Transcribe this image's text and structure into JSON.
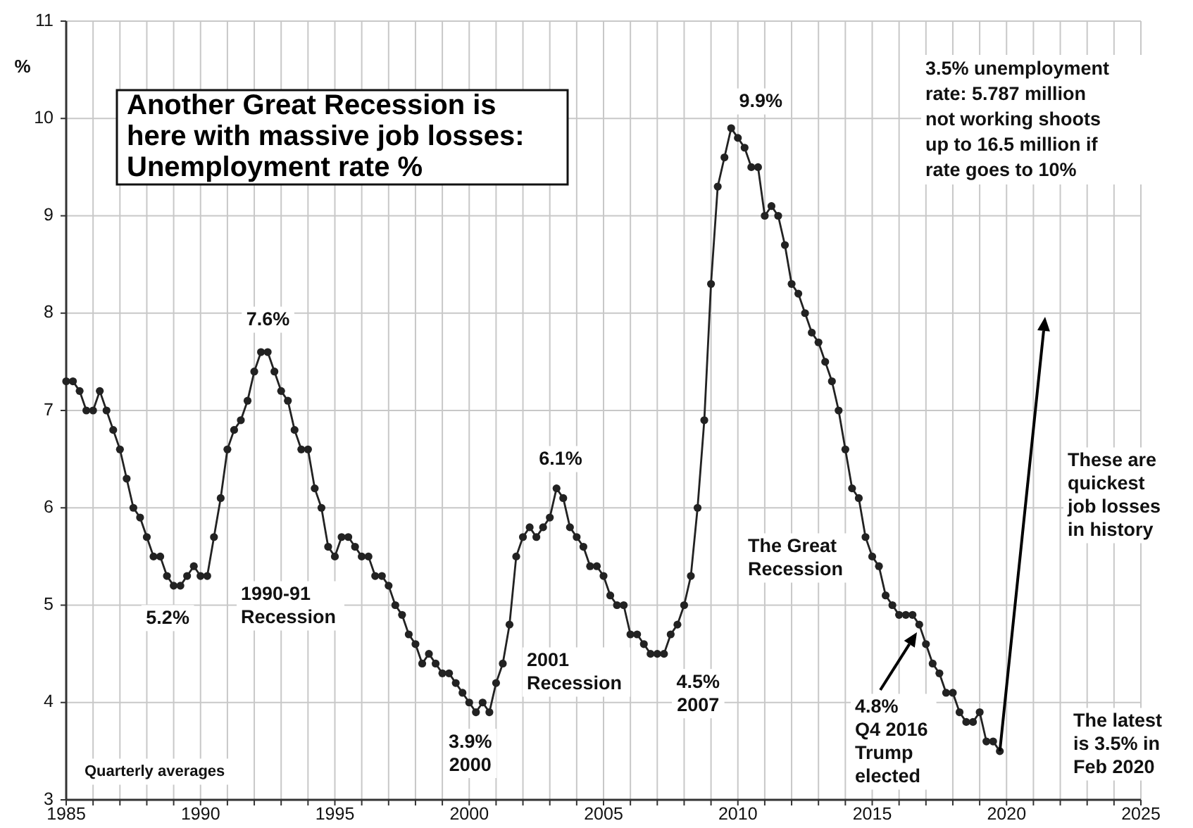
{
  "chart_data": {
    "type": "line",
    "title": "Another Great Recession is\nhere with massive job losses:\nUnemployment rate %",
    "ylabel": "%",
    "xlim": [
      1985,
      2025
    ],
    "ylim": [
      3,
      11
    ],
    "xticks": [
      1985,
      {
        "value": 1986,
        "label": null
      },
      {
        "value": 1987,
        "label": null
      },
      {
        "value": 1988,
        "label": null
      },
      {
        "value": 1989,
        "label": null
      },
      1990,
      {
        "value": 1991,
        "label": null
      },
      {
        "value": 1992,
        "label": null
      },
      {
        "value": 1993,
        "label": null
      },
      {
        "value": 1994,
        "label": null
      },
      1995,
      {
        "value": 1996,
        "label": null
      },
      {
        "value": 1997,
        "label": null
      },
      {
        "value": 1998,
        "label": null
      },
      {
        "value": 1999,
        "label": null
      },
      2000,
      {
        "value": 2001,
        "label": null
      },
      {
        "value": 2002,
        "label": null
      },
      {
        "value": 2003,
        "label": null
      },
      {
        "value": 2004,
        "label": null
      },
      2005,
      {
        "value": 2006,
        "label": null
      },
      {
        "value": 2007,
        "label": null
      },
      {
        "value": 2008,
        "label": null
      },
      {
        "value": 2009,
        "label": null
      },
      2010,
      {
        "value": 2011,
        "label": null
      },
      {
        "value": 2012,
        "label": null
      },
      {
        "value": 2013,
        "label": null
      },
      {
        "value": 2014,
        "label": null
      },
      2015,
      {
        "value": 2016,
        "label": null
      },
      {
        "value": 2017,
        "label": null
      },
      {
        "value": 2018,
        "label": null
      },
      {
        "value": 2019,
        "label": null
      },
      2020,
      {
        "value": 2021,
        "label": null
      },
      {
        "value": 2022,
        "label": null
      },
      {
        "value": 2023,
        "label": null
      },
      {
        "value": 2024,
        "label": null
      },
      2025
    ],
    "yticks": [
      3,
      4,
      5,
      6,
      7,
      8,
      9,
      10,
      11
    ],
    "grid": true,
    "marker": "circle",
    "line_style": "solid",
    "x": [
      1985,
      1985.25,
      1985.5,
      1985.75,
      1986,
      1986.25,
      1986.5,
      1986.75,
      1987,
      1987.25,
      1987.5,
      1987.75,
      1988,
      1988.25,
      1988.5,
      1988.75,
      1989,
      1989.25,
      1989.5,
      1989.75,
      1990,
      1990.25,
      1990.5,
      1990.75,
      1991,
      1991.25,
      1991.5,
      1991.75,
      1992,
      1992.25,
      1992.5,
      1992.75,
      1993,
      1993.25,
      1993.5,
      1993.75,
      1994,
      1994.25,
      1994.5,
      1994.75,
      1995,
      1995.25,
      1995.5,
      1995.75,
      1996,
      1996.25,
      1996.5,
      1996.75,
      1997,
      1997.25,
      1997.5,
      1997.75,
      1998,
      1998.25,
      1998.5,
      1998.75,
      1999,
      1999.25,
      1999.5,
      1999.75,
      2000,
      2000.25,
      2000.5,
      2000.75,
      2001,
      2001.25,
      2001.5,
      2001.75,
      2002,
      2002.25,
      2002.5,
      2002.75,
      2003,
      2003.25,
      2003.5,
      2003.75,
      2004,
      2004.25,
      2004.5,
      2004.75,
      2005,
      2005.25,
      2005.5,
      2005.75,
      2006,
      2006.25,
      2006.5,
      2006.75,
      2007,
      2007.25,
      2007.5,
      2007.75,
      2008,
      2008.25,
      2008.5,
      2008.75,
      2009,
      2009.25,
      2009.5,
      2009.75,
      2010,
      2010.25,
      2010.5,
      2010.75,
      2011,
      2011.25,
      2011.5,
      2011.75,
      2012,
      2012.25,
      2012.5,
      2012.75,
      2013,
      2013.25,
      2013.5,
      2013.75,
      2014,
      2014.25,
      2014.5,
      2014.75,
      2015,
      2015.25,
      2015.5,
      2015.75,
      2016,
      2016.25,
      2016.5,
      2016.75,
      2017,
      2017.25,
      2017.5,
      2017.75,
      2018,
      2018.25,
      2018.5,
      2018.75,
      2019,
      2019.25,
      2019.5,
      2019.75
    ],
    "series": [
      {
        "color": "#222222",
        "values": [
          7.3,
          7.3,
          7.2,
          7.0,
          7.0,
          7.2,
          7.0,
          6.8,
          6.6,
          6.3,
          6.0,
          5.9,
          5.7,
          5.5,
          5.5,
          5.3,
          5.2,
          5.2,
          5.3,
          5.4,
          5.3,
          5.3,
          5.7,
          6.1,
          6.6,
          6.8,
          6.9,
          7.1,
          7.4,
          7.6,
          7.6,
          7.4,
          7.2,
          7.1,
          6.8,
          6.6,
          6.6,
          6.2,
          6.0,
          5.6,
          5.5,
          5.7,
          5.7,
          5.6,
          5.5,
          5.5,
          5.3,
          5.3,
          5.2,
          5.0,
          4.9,
          4.7,
          4.6,
          4.4,
          4.5,
          4.4,
          4.3,
          4.3,
          4.2,
          4.1,
          4.0,
          3.9,
          4.0,
          3.9,
          4.2,
          4.4,
          4.8,
          5.5,
          5.7,
          5.8,
          5.7,
          5.8,
          5.9,
          6.2,
          6.1,
          5.8,
          5.7,
          5.6,
          5.4,
          5.4,
          5.3,
          5.1,
          5.0,
          5.0,
          4.7,
          4.7,
          4.6,
          4.5,
          4.5,
          4.5,
          4.7,
          4.8,
          5.0,
          5.3,
          6.0,
          6.9,
          8.3,
          9.3,
          9.6,
          9.9,
          9.8,
          9.7,
          9.5,
          9.5,
          9.0,
          9.1,
          9.0,
          8.7,
          8.3,
          8.2,
          8.0,
          7.8,
          7.7,
          7.5,
          7.3,
          7.0,
          6.6,
          6.2,
          6.1,
          5.7,
          5.5,
          5.4,
          5.1,
          5.0,
          4.9,
          4.9,
          4.9,
          4.8,
          4.6,
          4.4,
          4.3,
          4.1,
          4.1,
          3.9,
          3.8,
          3.8,
          3.9,
          3.6,
          3.6,
          3.5
        ]
      }
    ],
    "annotations": [
      {
        "text": "7.6%",
        "x": 1992.25,
        "y": 7.6
      },
      {
        "text": "5.2%",
        "x": 1989.25,
        "y": 5.2
      },
      "1990-91\nRecession",
      {
        "text": "3.9%\n2000",
        "x": 2000.25,
        "y": 3.9
      },
      "2001\nRecession",
      "6.1%",
      {
        "text": "4.5%\n2007",
        "x": 2007,
        "y": 4.5
      },
      {
        "text": "9.9%",
        "x": 2009.75,
        "y": 9.9
      },
      "The Great\nRecession",
      "4.8%\nQ4 2016\nTrump\nelected",
      "3.5% unemployment\nrate: 5.787 million\nnot working shoots\nup to 16.5 million if\nrate goes to 10%",
      "These are\nquickest\njob losses\nin history",
      "The latest\nis 3.5% in\nFeb 2020",
      "Quarterly averages"
    ]
  }
}
